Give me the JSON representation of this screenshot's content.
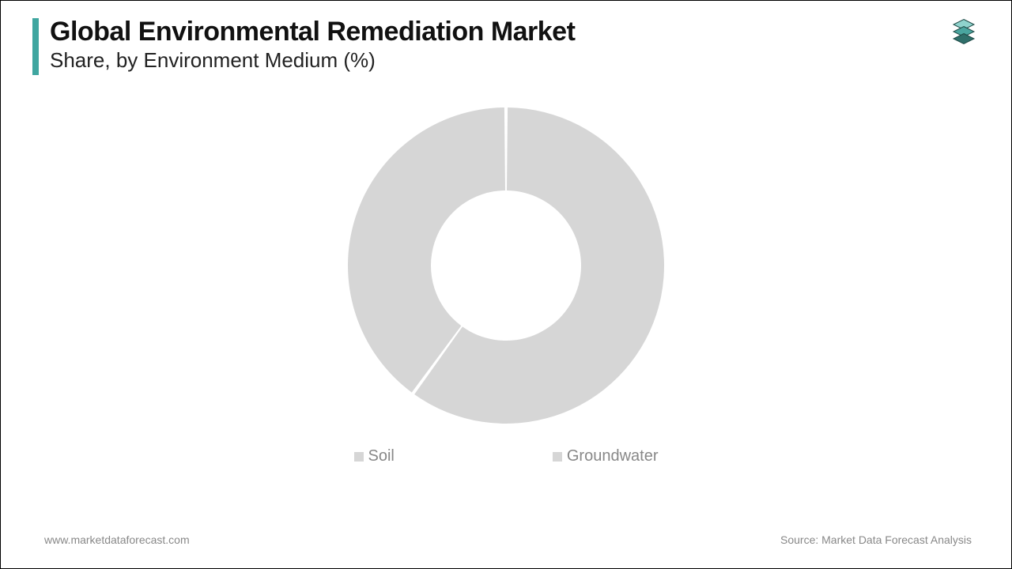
{
  "header": {
    "title": "Global Environmental Remediation Market",
    "subtitle": "Share, by Environment Medium (%)",
    "accent_color": "#3fa6a0",
    "title_fontsize": 34,
    "subtitle_fontsize": 26,
    "title_color": "#111111",
    "subtitle_color": "#222222"
  },
  "logo": {
    "layer_colors": [
      "#2f6f6a",
      "#4aa59f",
      "#8fd3cd"
    ],
    "stroke": "#1e4a46"
  },
  "chart": {
    "type": "donut",
    "categories": [
      "Soil",
      "Groundwater"
    ],
    "values": [
      60,
      40
    ],
    "slice_colors": [
      "#d6d6d6",
      "#d6d6d6"
    ],
    "gap_color": "#ffffff",
    "gap_width_deg": 1.2,
    "outer_radius": 200,
    "inner_radius": 95,
    "center_fill": "#ffffff",
    "background_color": "#ffffff",
    "start_angle_deg": 0
  },
  "legend": {
    "items": [
      {
        "label": "Soil",
        "color": "#d6d6d6"
      },
      {
        "label": "Groundwater",
        "color": "#d6d6d6"
      }
    ],
    "fontsize": 20,
    "text_color": "#888888",
    "swatch_size": 12
  },
  "footer": {
    "left": "www.marketdataforecast.com",
    "right": "Source: Market Data Forecast Analysis",
    "fontsize": 14,
    "color": "#888888"
  }
}
